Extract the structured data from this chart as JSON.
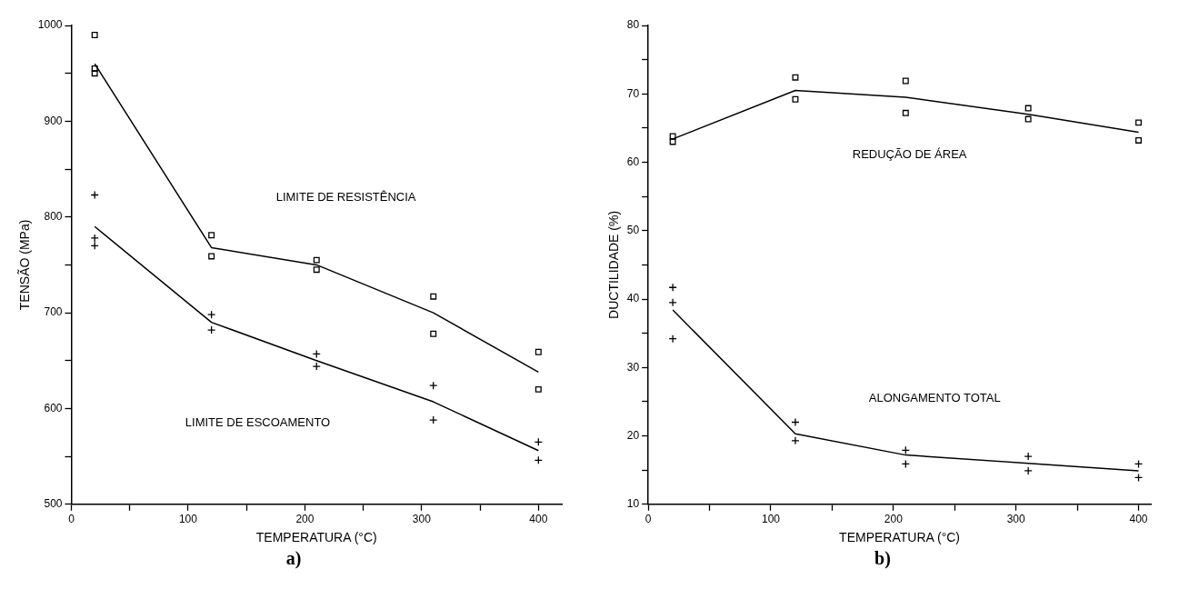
{
  "chart_data": [
    {
      "type": "scatter",
      "xlabel": "TEMPERATURA (°C)",
      "ylabel": "TENSÃO (MPa)",
      "xlim": [
        0,
        420
      ],
      "ylim": [
        500,
        1000
      ],
      "xticks": [
        0,
        {
          "value": 50,
          "label": null
        },
        100,
        {
          "value": 150,
          "label": null
        },
        200,
        {
          "value": 250,
          "label": null
        },
        300,
        {
          "value": 350,
          "label": null
        },
        400
      ],
      "yticks": [
        500,
        {
          "value": 550,
          "label": null
        },
        600,
        {
          "value": 650,
          "label": null
        },
        700,
        {
          "value": 750,
          "label": null
        },
        800,
        {
          "value": 850,
          "label": null
        },
        900,
        {
          "value": 950,
          "label": null
        },
        1000
      ],
      "grid": false,
      "legend": false,
      "series": [
        {
          "type": "scatter",
          "marker": "square",
          "color": "#000000",
          "x": [
            20,
            20,
            20,
            120,
            120,
            210,
            210,
            310,
            310,
            400,
            400
          ],
          "values": [
            990,
            955,
            950,
            781,
            759,
            755,
            745,
            717,
            678,
            659,
            620
          ]
        },
        {
          "type": "line",
          "marker": "none",
          "line_style": "solid",
          "color": "#000000",
          "x": [
            20,
            120,
            210,
            310,
            400
          ],
          "values": [
            960,
            768,
            750,
            700,
            638
          ]
        },
        {
          "type": "scatter",
          "marker": "cross",
          "color": "#000000",
          "x": [
            20,
            20,
            20,
            120,
            120,
            210,
            210,
            310,
            310,
            400,
            400
          ],
          "values": [
            823,
            778,
            770,
            698,
            682,
            657,
            644,
            624,
            588,
            565,
            546
          ]
        },
        {
          "type": "line",
          "marker": "none",
          "line_style": "solid",
          "color": "#000000",
          "x": [
            20,
            120,
            210,
            310,
            400
          ],
          "values": [
            790,
            690,
            650,
            607,
            556
          ]
        }
      ],
      "annotations": [
        "LIMITE DE RESISTÊNCIA",
        "LIMITE DE ESCOAMENTO",
        "a)"
      ]
    },
    {
      "type": "scatter",
      "xlabel": "TEMPERATURA (°C)",
      "ylabel": "DUCTILIDADE (%)",
      "xlim": [
        0,
        410
      ],
      "ylim": [
        10,
        80
      ],
      "xticks": [
        0,
        {
          "value": 50,
          "label": null
        },
        100,
        {
          "value": 150,
          "label": null
        },
        200,
        {
          "value": 250,
          "label": null
        },
        300,
        {
          "value": 350,
          "label": null
        },
        400
      ],
      "yticks": [
        10,
        {
          "value": 15,
          "label": null
        },
        20,
        {
          "value": 25,
          "label": null
        },
        30,
        {
          "value": 35,
          "label": null
        },
        40,
        {
          "value": 45,
          "label": null
        },
        50,
        {
          "value": 55,
          "label": null
        },
        60,
        {
          "value": 65,
          "label": null
        },
        70,
        {
          "value": 75,
          "label": null
        },
        80
      ],
      "grid": false,
      "legend": false,
      "series": [
        {
          "type": "scatter",
          "marker": "square",
          "color": "#000000",
          "x": [
            20,
            20,
            120,
            120,
            210,
            210,
            310,
            310,
            400,
            400
          ],
          "values": [
            63.8,
            63,
            72.4,
            69.2,
            71.9,
            67.2,
            67.9,
            66.3,
            65.8,
            63.2
          ]
        },
        {
          "type": "line",
          "marker": "none",
          "line_style": "solid",
          "color": "#000000",
          "x": [
            20,
            120,
            210,
            310,
            400
          ],
          "values": [
            63.4,
            70.5,
            69.5,
            67,
            64.4
          ]
        },
        {
          "type": "scatter",
          "marker": "cross",
          "color": "#000000",
          "x": [
            20,
            20,
            20,
            120,
            120,
            210,
            210,
            310,
            310,
            400,
            400
          ],
          "values": [
            41.7,
            39.5,
            34.2,
            22,
            19.3,
            17.9,
            15.9,
            17,
            14.9,
            15.9,
            13.9
          ]
        },
        {
          "type": "line",
          "marker": "none",
          "line_style": "solid",
          "color": "#000000",
          "x": [
            20,
            120,
            210,
            310,
            400
          ],
          "values": [
            38.4,
            20.3,
            17.2,
            16,
            14.9
          ]
        }
      ],
      "annotations": [
        "REDUÇÃO DE ÁREA",
        "ALONGAMENTO TOTAL",
        "b)"
      ]
    }
  ]
}
